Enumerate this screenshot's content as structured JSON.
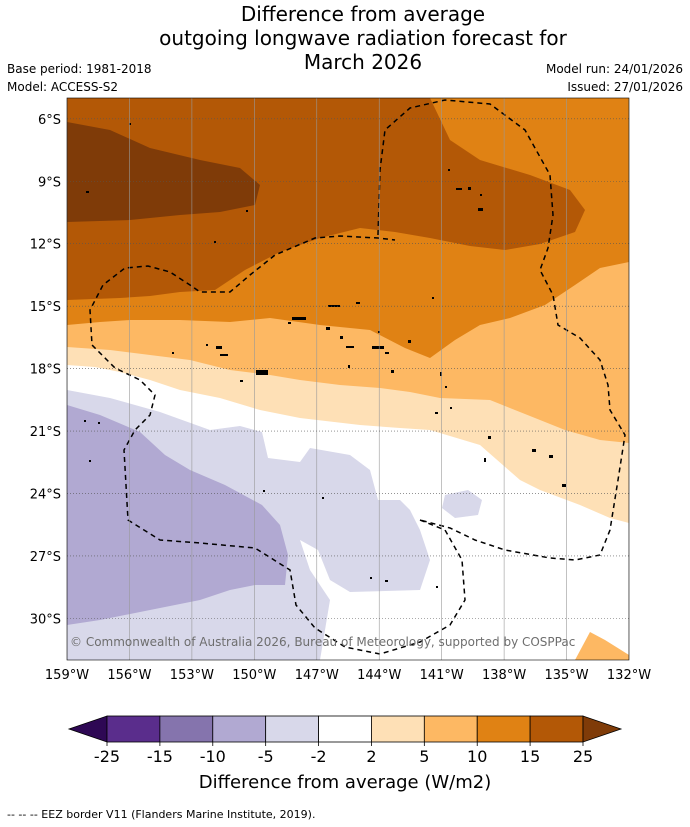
{
  "title_lines": [
    "Difference from average",
    "outgoing longwave radiation forecast for",
    "March 2026"
  ],
  "base_period": "Base period: 1981-2018",
  "model": "Model: ACCESS-S2",
  "model_run": "Model run: 24/01/2026",
  "issued": "Issued: 27/01/2026",
  "copyright": "© Commonwealth of Australia 2026, Bureau of Meteorology, supported by COSPPac",
  "footnote": "--  --  -- EEZ border V11 (Flanders Marine Institute, 2019).",
  "chart_data": {
    "type": "heatmap",
    "map_region": "South Pacific",
    "lon_ticks": [
      -159,
      -156,
      -153,
      -150,
      -147,
      -144,
      -141,
      -138,
      -135,
      -132
    ],
    "lon_labels": [
      "159°W",
      "156°W",
      "153°W",
      "150°W",
      "147°W",
      "144°W",
      "141°W",
      "138°W",
      "135°W",
      "132°W"
    ],
    "lat_ticks": [
      -6,
      -9,
      -12,
      -15,
      -18,
      -21,
      -24,
      -27,
      -30
    ],
    "lat_labels": [
      "6°S",
      "9°S",
      "12°S",
      "15°S",
      "18°S",
      "21°S",
      "24°S",
      "27°S",
      "30°S"
    ],
    "colorbar": {
      "label": "Difference from average (W/m2)",
      "tick_labels": [
        "-25",
        "-15",
        "-10",
        "-5",
        "-2",
        "2",
        "5",
        "10",
        "15",
        "25"
      ],
      "colors": [
        "#2e0854",
        "#5a2d8c",
        "#8574ad",
        "#b1a9d2",
        "#d8d8ea",
        "#ffffff",
        "#fee0b6",
        "#fdb863",
        "#e08214",
        "#b35806",
        "#7f3b08"
      ]
    },
    "pattern": "positive anomalies (>25 W/m2) in the northwest decreasing southward; negative anomalies (-10 to -5) in the southwest"
  }
}
